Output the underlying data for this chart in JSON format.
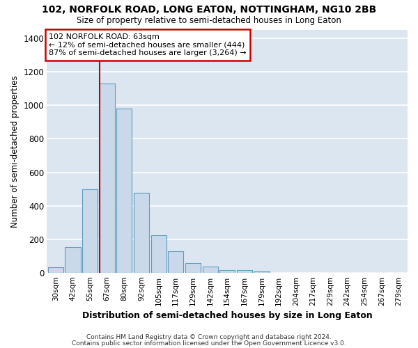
{
  "title1": "102, NORFOLK ROAD, LONG EATON, NOTTINGHAM, NG10 2BB",
  "title2": "Size of property relative to semi-detached houses in Long Eaton",
  "xlabel": "Distribution of semi-detached houses by size in Long Eaton",
  "ylabel": "Number of semi-detached properties",
  "footnote1": "Contains HM Land Registry data © Crown copyright and database right 2024.",
  "footnote2": "Contains public sector information licensed under the Open Government Licence v3.0.",
  "categories": [
    "30sqm",
    "42sqm",
    "55sqm",
    "67sqm",
    "80sqm",
    "92sqm",
    "105sqm",
    "117sqm",
    "129sqm",
    "142sqm",
    "154sqm",
    "167sqm",
    "179sqm",
    "192sqm",
    "204sqm",
    "217sqm",
    "229sqm",
    "242sqm",
    "254sqm",
    "267sqm",
    "279sqm"
  ],
  "values": [
    35,
    155,
    500,
    1130,
    980,
    480,
    225,
    130,
    60,
    38,
    18,
    20,
    10,
    2,
    0,
    0,
    0,
    0,
    0,
    0,
    0
  ],
  "bar_color": "#c9d9ea",
  "bar_edge_color": "#5f9dc0",
  "plot_bg_color": "#dce6f0",
  "figure_bg_color": "#ffffff",
  "grid_color": "#ffffff",
  "red_line_color": "#cc0000",
  "annotation_box_color": "#ffffff",
  "annotation_box_edge": "#cc0000",
  "annotation_text_line1": "102 NORFOLK ROAD: 63sqm",
  "annotation_text_line2": "← 12% of semi-detached houses are smaller (444)",
  "annotation_text_line3": "87% of semi-detached houses are larger (3,264) →",
  "ylim": [
    0,
    1450
  ],
  "yticks": [
    0,
    200,
    400,
    600,
    800,
    1000,
    1200,
    1400
  ],
  "red_line_index": 3
}
